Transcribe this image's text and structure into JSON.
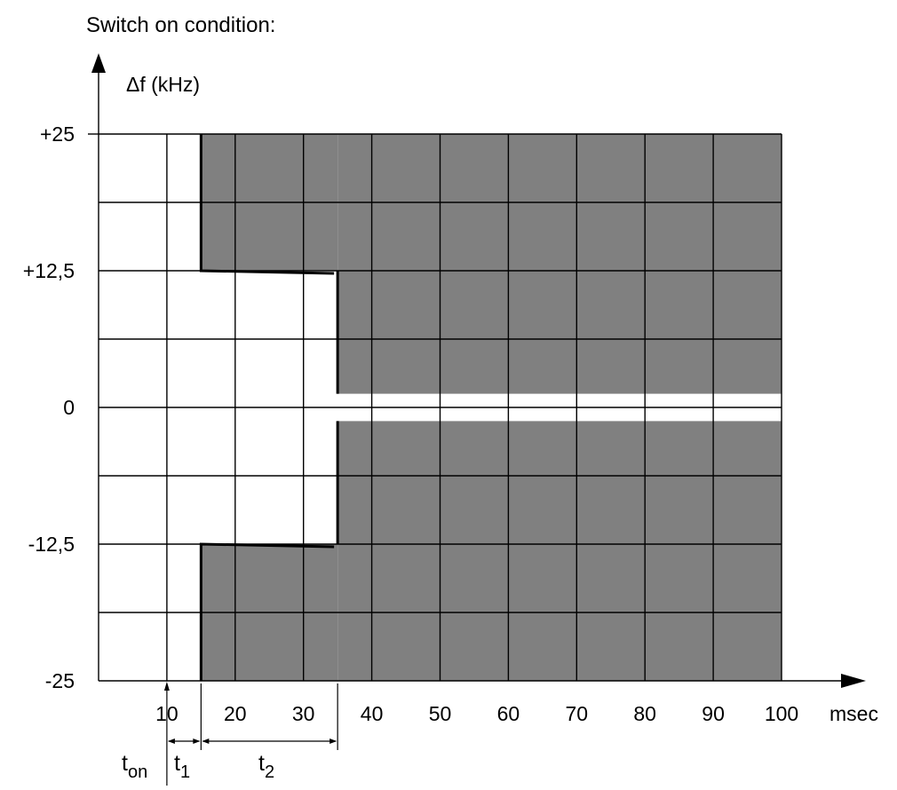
{
  "caption": "Switch on condition:",
  "y_axis": {
    "label": "Δf (kHz)",
    "ticks": [
      "+25",
      "+12,5",
      "0",
      "-12,5",
      "-25"
    ],
    "tick_values": [
      25,
      12.5,
      0,
      -12.5,
      -25
    ],
    "range": [
      -25,
      25
    ],
    "grid_step": 6.25
  },
  "x_axis": {
    "unit": "msec",
    "ticks": [
      "10",
      "20",
      "30",
      "40",
      "50",
      "60",
      "70",
      "80",
      "90",
      "100"
    ],
    "tick_values": [
      10,
      20,
      30,
      40,
      50,
      60,
      70,
      80,
      90,
      100
    ],
    "range": [
      0,
      100
    ],
    "grid_step": 10
  },
  "time_markers": {
    "t_on": {
      "base": "t",
      "sub": "on",
      "time": 10
    },
    "t1": {
      "base": "t",
      "sub": "1",
      "from": 10,
      "to": 15
    },
    "t2": {
      "base": "t",
      "sub": "2",
      "from": 15,
      "to": 35
    }
  },
  "forbidden_regions": {
    "stage1": {
      "from_time": 15,
      "abs_df_from": 12.5
    },
    "stage2": {
      "from_time": 35,
      "abs_df_from": 1.25
    }
  },
  "colors": {
    "region": "#808080",
    "grid": "#000000",
    "background": "#ffffff"
  }
}
